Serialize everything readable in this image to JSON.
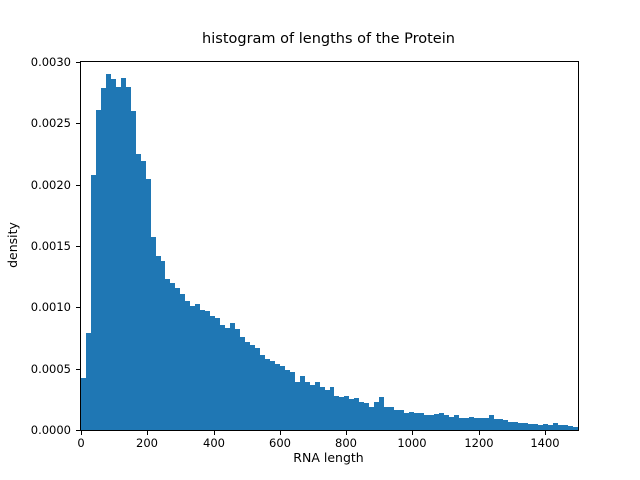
{
  "figure": {
    "background": "#ffffff"
  },
  "chart_data": {
    "type": "bar",
    "subtype": "histogram",
    "title": "histogram of lengths of the Protein",
    "xlabel": "RNA length",
    "ylabel": "density",
    "bar_color": "#1f77b4",
    "grid": false,
    "legend": null,
    "xlim": [
      0,
      1500
    ],
    "ylim": [
      0,
      0.003
    ],
    "x_ticks": [
      0,
      200,
      400,
      600,
      800,
      1000,
      1200,
      1400
    ],
    "y_ticks": [
      0.0,
      0.0005,
      0.001,
      0.0015,
      0.002,
      0.0025,
      0.003
    ],
    "y_tick_decimals": 4,
    "bin_start": 0,
    "bin_width": 15,
    "densities": [
      0.00042,
      0.00079,
      0.00208,
      0.00261,
      0.00279,
      0.0029,
      0.00286,
      0.0028,
      0.00287,
      0.0028,
      0.0026,
      0.00225,
      0.00219,
      0.00205,
      0.00157,
      0.00142,
      0.00138,
      0.00123,
      0.0012,
      0.00116,
      0.00111,
      0.00105,
      0.00101,
      0.00103,
      0.00098,
      0.00097,
      0.00093,
      0.00091,
      0.00086,
      0.00083,
      0.00087,
      0.00082,
      0.00076,
      0.00072,
      0.00069,
      0.00067,
      0.00061,
      0.00058,
      0.00056,
      0.00054,
      0.00052,
      0.00049,
      0.00047,
      0.00039,
      0.00044,
      0.00039,
      0.00037,
      0.00039,
      0.00035,
      0.00033,
      0.00035,
      0.00028,
      0.00027,
      0.00028,
      0.00025,
      0.00026,
      0.00023,
      0.00022,
      0.00019,
      0.00023,
      0.00027,
      0.00019,
      0.00019,
      0.00016,
      0.00016,
      0.00014,
      0.00015,
      0.00014,
      0.00014,
      0.00012,
      0.00012,
      0.00013,
      0.00014,
      0.00012,
      0.00011,
      0.00012,
      0.0001,
      0.0001,
      0.00011,
      9.5e-05,
      9.5e-05,
      9.5e-05,
      0.000125,
      8.7e-05,
      8.7e-05,
      7.8e-05,
      6.8e-05,
      6.8e-05,
      6e-05,
      6e-05,
      5.1e-05,
      5.1e-05,
      4.3e-05,
      5.1e-05,
      4.3e-05,
      6e-05,
      4.3e-05,
      3.8e-05,
      3.3e-05,
      2.5e-05
    ]
  }
}
